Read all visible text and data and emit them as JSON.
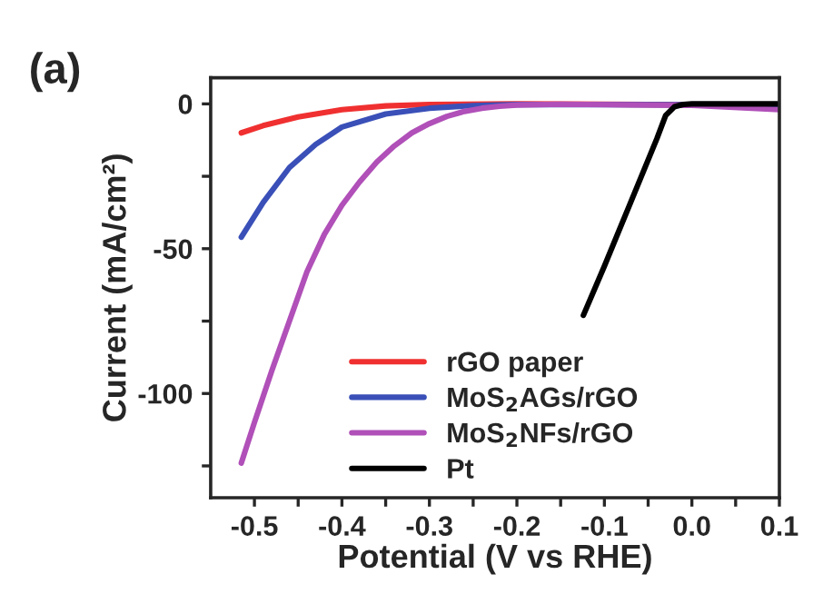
{
  "chart_data": {
    "type": "line",
    "title": "(a)",
    "xlabel": "Potential (V vs RHE)",
    "ylabel": "Current (mA/cm²)",
    "xlim": [
      -0.55,
      0.1
    ],
    "ylim": [
      -136,
      9
    ],
    "xticks": [
      {
        "value": -0.5,
        "label": "-0.5"
      },
      {
        "value": -0.45,
        "label": null
      },
      {
        "value": -0.4,
        "label": "-0.4"
      },
      {
        "value": -0.35,
        "label": null
      },
      {
        "value": -0.3,
        "label": "-0.3"
      },
      {
        "value": -0.25,
        "label": null
      },
      {
        "value": -0.2,
        "label": "-0.2"
      },
      {
        "value": -0.15,
        "label": null
      },
      {
        "value": -0.1,
        "label": "-0.1"
      },
      {
        "value": -0.05,
        "label": null
      },
      {
        "value": 0.0,
        "label": "0.0"
      },
      {
        "value": 0.05,
        "label": null
      },
      {
        "value": 0.1,
        "label": "0.1"
      }
    ],
    "yticks": [
      {
        "value": -125,
        "label": null
      },
      {
        "value": -100,
        "label": "-100"
      },
      {
        "value": -75,
        "label": null
      },
      {
        "value": -50,
        "label": "-50"
      },
      {
        "value": -25,
        "label": null
      },
      {
        "value": 0,
        "label": "0"
      }
    ],
    "legend": "bottom",
    "grid": false,
    "line_style": "solid",
    "series": [
      {
        "name": "rGO paper",
        "color": "#f03030",
        "x": [
          -0.515,
          -0.49,
          -0.45,
          -0.4,
          -0.35,
          -0.3,
          -0.2,
          0.0
        ],
        "values": [
          -10,
          -7.5,
          -4.5,
          -2,
          -0.7,
          -0.2,
          0,
          -0.3
        ]
      },
      {
        "name": "MoS$_{2}$AGs/rGO",
        "color": "#3a50b8",
        "x": [
          -0.515,
          -0.49,
          -0.46,
          -0.43,
          -0.4,
          -0.35,
          -0.3,
          -0.25,
          -0.2,
          0.0,
          0.1
        ],
        "values": [
          -46,
          -34,
          -22,
          -14,
          -8,
          -3.5,
          -1.5,
          -0.6,
          -0.2,
          -0.3,
          -0.5
        ]
      },
      {
        "name": "MoS$_{2}$NFs/rGO",
        "color": "#b050b8",
        "x": [
          -0.515,
          -0.5,
          -0.48,
          -0.46,
          -0.44,
          -0.42,
          -0.4,
          -0.38,
          -0.36,
          -0.34,
          -0.32,
          -0.3,
          -0.28,
          -0.26,
          -0.24,
          -0.22,
          -0.2,
          -0.15,
          0.0,
          0.1
        ],
        "values": [
          -124,
          -110,
          -92,
          -75,
          -58,
          -45,
          -35,
          -27,
          -20,
          -14.5,
          -10,
          -6.8,
          -4.3,
          -2.6,
          -1.5,
          -0.8,
          -0.4,
          -0.1,
          -0.5,
          -2
        ]
      },
      {
        "name": "Pt",
        "color": "#000000",
        "x": [
          -0.124,
          -0.1,
          -0.07,
          -0.04,
          -0.03,
          -0.02,
          -0.01,
          0.0,
          0.1
        ],
        "values": [
          -73,
          -56,
          -34,
          -12,
          -4,
          -1,
          -0.2,
          0,
          0
        ]
      }
    ]
  }
}
